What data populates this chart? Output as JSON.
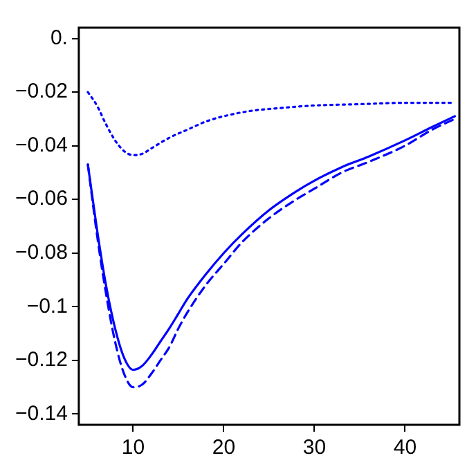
{
  "chart_data": {
    "type": "line",
    "xlim": [
      4,
      46
    ],
    "xticks": [
      10,
      20,
      30,
      40
    ],
    "ylim": [
      -0.144,
      0.004
    ],
    "yticks": [
      {
        "value": 0,
        "label": "0."
      },
      {
        "value": -0.02,
        "label": "−0.02"
      },
      {
        "value": -0.04,
        "label": "−0.04"
      },
      {
        "value": -0.06,
        "label": "−0.06"
      },
      {
        "value": -0.08,
        "label": "−0.08"
      },
      {
        "value": -0.1,
        "label": "−0.1"
      },
      {
        "value": -0.12,
        "label": "−0.12"
      },
      {
        "value": -0.14,
        "label": "−0.14"
      }
    ],
    "grid": false,
    "legend": false,
    "marker": "none",
    "series": [
      {
        "color": "#0000ff",
        "line_style": "solid",
        "x": [
          5,
          6,
          7,
          8,
          9,
          10,
          11,
          12,
          13,
          14,
          15,
          16,
          18,
          20,
          22,
          25,
          28,
          30,
          33,
          36,
          40,
          43,
          45.5
        ],
        "values": [
          -0.047,
          -0.071,
          -0.092,
          -0.108,
          -0.119,
          -0.1235,
          -0.122,
          -0.118,
          -0.113,
          -0.108,
          -0.1025,
          -0.097,
          -0.088,
          -0.08,
          -0.073,
          -0.064,
          -0.057,
          -0.053,
          -0.048,
          -0.044,
          -0.038,
          -0.033,
          -0.029
        ]
      },
      {
        "color": "#0000ff",
        "line_style": "dashed",
        "x": [
          5,
          6,
          7,
          8,
          9,
          10,
          11,
          12,
          13,
          14,
          15,
          16,
          18,
          20,
          22,
          25,
          28,
          30,
          33,
          36,
          40,
          43,
          45.5
        ],
        "values": [
          -0.047,
          -0.073,
          -0.095,
          -0.113,
          -0.125,
          -0.13,
          -0.129,
          -0.125,
          -0.12,
          -0.115,
          -0.108,
          -0.102,
          -0.092,
          -0.084,
          -0.076,
          -0.067,
          -0.06,
          -0.056,
          -0.05,
          -0.046,
          -0.04,
          -0.034,
          -0.03
        ]
      },
      {
        "color": "#0000ff",
        "line_style": "dotted",
        "x": [
          5,
          6,
          7,
          8,
          9,
          10,
          11,
          12,
          14,
          16,
          18,
          20,
          23,
          26,
          30,
          35,
          40,
          45.5
        ],
        "values": [
          -0.02,
          -0.025,
          -0.032,
          -0.038,
          -0.042,
          -0.0435,
          -0.043,
          -0.041,
          -0.037,
          -0.034,
          -0.031,
          -0.029,
          -0.027,
          -0.026,
          -0.025,
          -0.0245,
          -0.024,
          -0.024
        ]
      }
    ]
  }
}
